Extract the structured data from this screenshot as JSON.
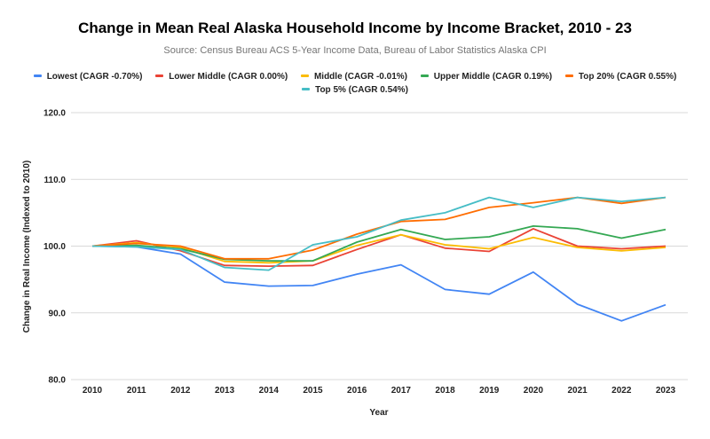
{
  "chart_data": {
    "type": "line",
    "title": "Change in Mean Real Alaska Household Income by Income Bracket, 2010 - 23",
    "subtitle": "Source: Census Bureau ACS 5-Year Income Data, Bureau of Labor Statistics Alaska CPI",
    "xlabel": "Year",
    "ylabel": "Change in Real Income (Indexed to 2010)",
    "ylim": [
      80,
      120
    ],
    "yticks": [
      "80.0",
      "90.0",
      "100.0",
      "110.0",
      "120.0"
    ],
    "ytick_values": [
      80,
      90,
      100,
      110,
      120
    ],
    "grid": true,
    "legend_position": "top",
    "x": [
      "2010",
      "2011",
      "2012",
      "2013",
      "2014",
      "2015",
      "2016",
      "2017",
      "2018",
      "2019",
      "2020",
      "2021",
      "2022",
      "2023"
    ],
    "series": [
      {
        "name": "Lowest (CAGR -0.70%)",
        "color": "#4285F4",
        "values": [
          100.0,
          99.9,
          98.8,
          94.6,
          94.0,
          94.1,
          95.8,
          97.2,
          93.5,
          92.8,
          96.1,
          91.3,
          88.8,
          91.2
        ]
      },
      {
        "name": "Lower Middle (CAGR 0.00%)",
        "color": "#EA4335",
        "values": [
          100.0,
          100.8,
          99.3,
          97.1,
          97.0,
          97.1,
          99.5,
          101.7,
          99.7,
          99.2,
          102.6,
          100.0,
          99.6,
          100.0
        ]
      },
      {
        "name": "Middle (CAGR -0.01%)",
        "color": "#FBBC04",
        "values": [
          100.0,
          100.5,
          99.8,
          97.7,
          97.5,
          97.8,
          100.1,
          101.7,
          100.2,
          99.6,
          101.3,
          99.8,
          99.3,
          99.8
        ]
      },
      {
        "name": "Upper Middle (CAGR 0.19%)",
        "color": "#34A853",
        "values": [
          100.0,
          100.1,
          99.6,
          98.0,
          97.8,
          97.8,
          100.6,
          102.5,
          101.0,
          101.4,
          103.0,
          102.6,
          101.2,
          102.5
        ]
      },
      {
        "name": "Top 20% (CAGR 0.55%)",
        "color": "#FF6D01",
        "values": [
          100.0,
          100.4,
          100.0,
          98.1,
          98.1,
          99.4,
          101.8,
          103.7,
          104.0,
          105.8,
          106.5,
          107.3,
          106.4,
          107.3
        ]
      },
      {
        "name": "Top 5% (CAGR 0.54%)",
        "color": "#46BDC6",
        "values": [
          100.0,
          99.9,
          99.5,
          96.8,
          96.4,
          100.2,
          101.4,
          103.9,
          105.0,
          107.3,
          105.8,
          107.3,
          106.7,
          107.3
        ]
      }
    ]
  }
}
